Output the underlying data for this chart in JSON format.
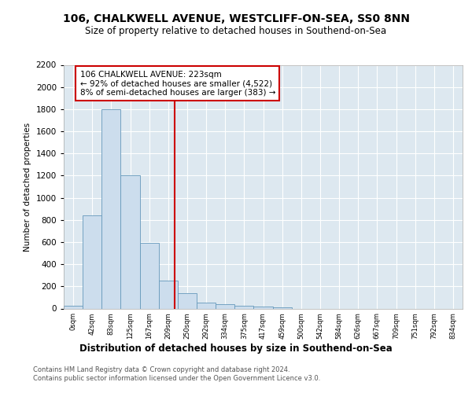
{
  "title_line1": "106, CHALKWELL AVENUE, WESTCLIFF-ON-SEA, SS0 8NN",
  "title_line2": "Size of property relative to detached houses in Southend-on-Sea",
  "xlabel": "Distribution of detached houses by size in Southend-on-Sea",
  "ylabel": "Number of detached properties",
  "bin_labels": [
    "0sqm",
    "42sqm",
    "83sqm",
    "125sqm",
    "167sqm",
    "209sqm",
    "250sqm",
    "292sqm",
    "334sqm",
    "375sqm",
    "417sqm",
    "459sqm",
    "500sqm",
    "542sqm",
    "584sqm",
    "626sqm",
    "667sqm",
    "709sqm",
    "751sqm",
    "792sqm",
    "834sqm"
  ],
  "bar_values": [
    25,
    840,
    1800,
    1200,
    590,
    255,
    135,
    50,
    40,
    25,
    20,
    10,
    0,
    0,
    0,
    0,
    0,
    0,
    0,
    0,
    0
  ],
  "bar_color": "#ccdded",
  "bar_edge_color": "#6699bb",
  "annotation_text_line1": "106 CHALKWELL AVENUE: 223sqm",
  "annotation_text_line2": "← 92% of detached houses are smaller (4,522)",
  "annotation_text_line3": "8% of semi-detached houses are larger (383) →",
  "annotation_box_facecolor": "#ffffff",
  "annotation_box_edgecolor": "#cc0000",
  "red_line_color": "#cc0000",
  "ylim": [
    0,
    2200
  ],
  "yticks": [
    0,
    200,
    400,
    600,
    800,
    1000,
    1200,
    1400,
    1600,
    1800,
    2000,
    2200
  ],
  "fig_facecolor": "#ffffff",
  "ax_facecolor": "#dde8f0",
  "grid_color": "#ffffff",
  "footnote_line1": "Contains HM Land Registry data © Crown copyright and database right 2024.",
  "footnote_line2": "Contains public sector information licensed under the Open Government Licence v3.0."
}
